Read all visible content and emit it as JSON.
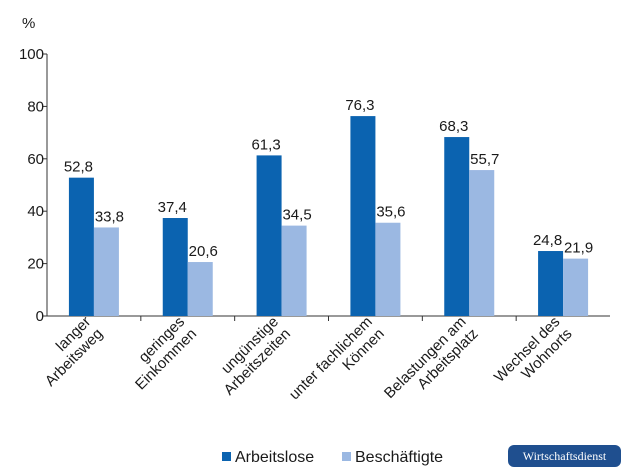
{
  "chart_data": {
    "type": "bar",
    "ylabel": "%",
    "ylim": [
      0,
      100
    ],
    "yticks": [
      0,
      20,
      40,
      60,
      80,
      100
    ],
    "grid": false,
    "legend_position": "bottom",
    "categories": [
      [
        "langer",
        "Arbeitsweg"
      ],
      [
        "geringes",
        "Einkommen"
      ],
      [
        "ungünstige",
        "Arbeitszeiten"
      ],
      [
        "unter fachlichem",
        "Können"
      ],
      [
        "Belastungen am",
        "Arbeitsplatz"
      ],
      [
        "Wechsel des",
        "Wohnorts"
      ]
    ],
    "series": [
      {
        "name": "Arbeitslose",
        "color": "#0b63b0",
        "values": [
          52.8,
          37.4,
          61.3,
          76.3,
          68.3,
          24.8
        ]
      },
      {
        "name": "Beschäftigte",
        "color": "#9bb8e2",
        "values": [
          33.8,
          20.6,
          34.5,
          35.6,
          55.7,
          21.9
        ]
      }
    ]
  },
  "badge": {
    "text": "Wirtschaftsdienst",
    "color": "#1f4f8f"
  }
}
